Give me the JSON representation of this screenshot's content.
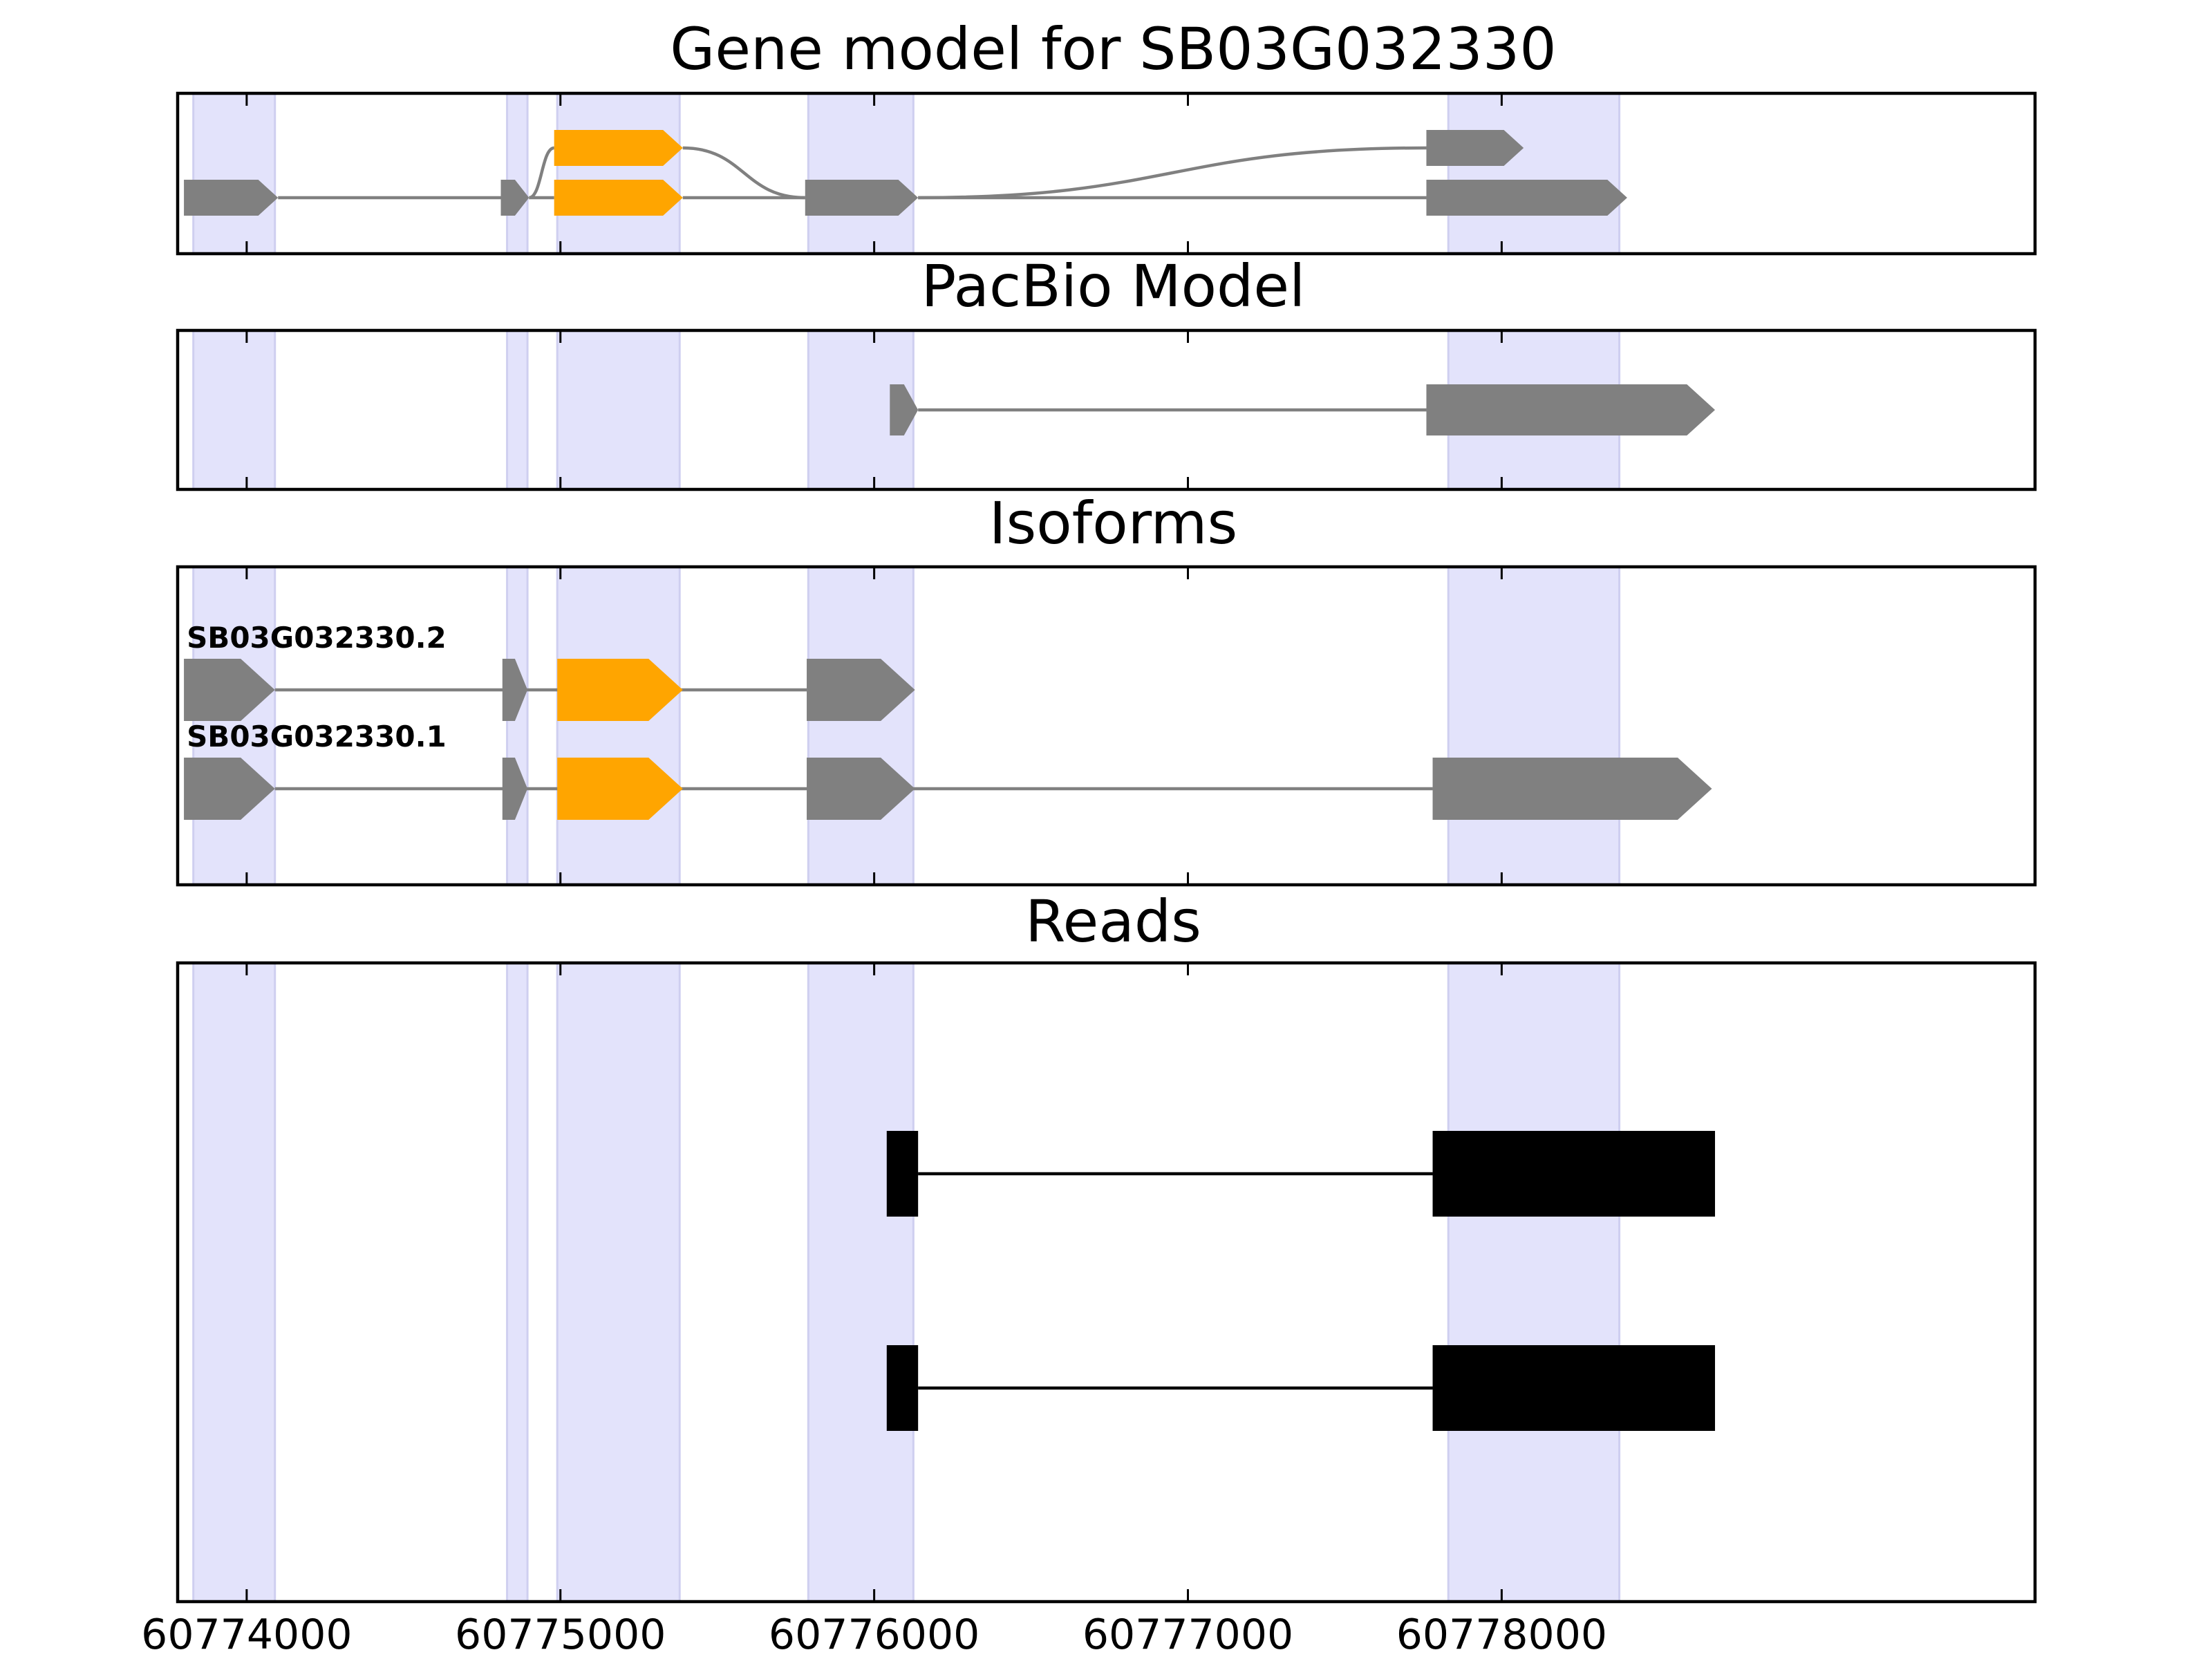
{
  "chart_data": {
    "type": "gene_model_tracks",
    "x_axis": {
      "ticks": [
        60774000,
        60775000,
        60776000,
        60777000,
        60778000
      ],
      "tick_labels": [
        "60774000",
        "60775000",
        "60776000",
        "60777000",
        "60778000"
      ],
      "range": [
        60773780,
        60779700
      ]
    },
    "highlight_regions": [
      [
        60773830,
        60774090
      ],
      [
        60774830,
        60774895
      ],
      [
        60774990,
        60775380
      ],
      [
        60775790,
        60776125
      ],
      [
        60777830,
        60778375
      ]
    ],
    "colors": {
      "exon": "#808080",
      "cds": "#FFA500",
      "highlight": "#E3E3FB",
      "read": "#000000",
      "intron": "#808080"
    },
    "panels": [
      {
        "title": "Gene model for SB03G032330",
        "kind": "splice_graph",
        "nodes": [
          {
            "start": 60773800,
            "end": 60774100,
            "row": 1,
            "color": "exon"
          },
          {
            "start": 60774810,
            "end": 60774900,
            "row": 1,
            "color": "exon"
          },
          {
            "start": 60774980,
            "end": 60775390,
            "row": 0,
            "color": "cds"
          },
          {
            "start": 60774980,
            "end": 60775390,
            "row": 1,
            "color": "cds"
          },
          {
            "start": 60775780,
            "end": 60776140,
            "row": 1,
            "color": "exon"
          },
          {
            "start": 60777760,
            "end": 60778070,
            "row": 0,
            "color": "exon"
          },
          {
            "start": 60777760,
            "end": 60778400,
            "row": 1,
            "color": "exon"
          }
        ],
        "edges": [
          {
            "from": 60774100,
            "to": 60774810,
            "from_row": 1,
            "to_row": 1
          },
          {
            "from": 60774900,
            "to": 60774980,
            "from_row": 1,
            "to_row": 0
          },
          {
            "from": 60774900,
            "to": 60774980,
            "from_row": 1,
            "to_row": 1
          },
          {
            "from": 60775390,
            "to": 60775780,
            "from_row": 0,
            "to_row": 1
          },
          {
            "from": 60775390,
            "to": 60775780,
            "from_row": 1,
            "to_row": 1
          },
          {
            "from": 60776140,
            "to": 60777760,
            "from_row": 1,
            "to_row": 0
          },
          {
            "from": 60776140,
            "to": 60777760,
            "from_row": 1,
            "to_row": 1
          }
        ]
      },
      {
        "title": "PacBio Model",
        "kind": "model",
        "exons": [
          {
            "start": 60776050,
            "end": 60776140
          },
          {
            "start": 60777760,
            "end": 60778680
          }
        ]
      },
      {
        "title": "Isoforms",
        "kind": "isoforms",
        "isoforms": [
          {
            "name": "SB03G032330.2",
            "exons": [
              {
                "start": 60773800,
                "end": 60774090,
                "color": "exon"
              },
              {
                "start": 60774815,
                "end": 60774895,
                "color": "exon"
              },
              {
                "start": 60774990,
                "end": 60775390,
                "color": "cds"
              },
              {
                "start": 60775785,
                "end": 60776130,
                "color": "exon"
              }
            ]
          },
          {
            "name": "SB03G032330.1",
            "exons": [
              {
                "start": 60773800,
                "end": 60774090,
                "color": "exon"
              },
              {
                "start": 60774815,
                "end": 60774895,
                "color": "exon"
              },
              {
                "start": 60774990,
                "end": 60775390,
                "color": "cds"
              },
              {
                "start": 60775785,
                "end": 60776130,
                "color": "exon"
              },
              {
                "start": 60777780,
                "end": 60778670,
                "color": "exon"
              }
            ]
          }
        ]
      },
      {
        "title": "Reads",
        "kind": "reads",
        "reads": [
          {
            "blocks": [
              {
                "start": 60776040,
                "end": 60776140
              },
              {
                "start": 60777780,
                "end": 60778680
              }
            ]
          },
          {
            "blocks": [
              {
                "start": 60776040,
                "end": 60776140
              },
              {
                "start": 60777780,
                "end": 60778680
              }
            ]
          }
        ]
      }
    ]
  }
}
